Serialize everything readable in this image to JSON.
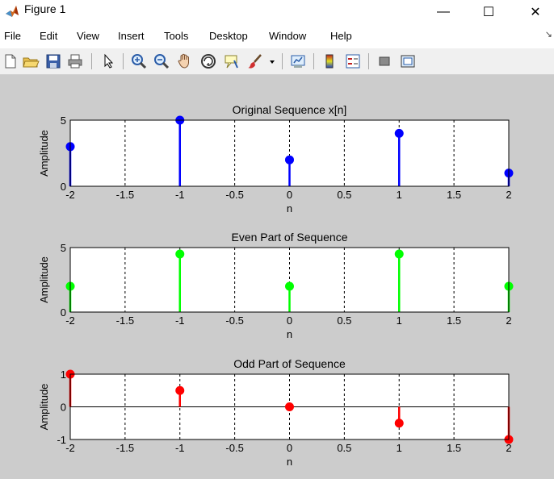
{
  "window": {
    "title": "Figure 1",
    "controls": {
      "minimize": "—",
      "maximize": "☐",
      "close": "✕"
    }
  },
  "menu": {
    "items": [
      "File",
      "Edit",
      "View",
      "Insert",
      "Tools",
      "Desktop",
      "Window",
      "Help"
    ],
    "dock_glyph": "↘"
  },
  "toolbar": {
    "buttons": [
      "new-figure-icon",
      "open-file-icon",
      "save-icon",
      "print-icon",
      "edit-plot-arrow-icon",
      "zoom-in-icon",
      "zoom-out-icon",
      "pan-hand-icon",
      "rotate-3d-icon",
      "data-cursor-icon",
      "brush-icon",
      "brush-dropdown-icon",
      "link-plot-icon",
      "colorbar-icon",
      "legend-icon",
      "hide-plot-tools-icon",
      "show-plot-tools-icon"
    ]
  },
  "colors": {
    "original": "#0000ff",
    "even": "#00ff00",
    "odd": "#ff0000",
    "figure_bg": "#cccccc"
  },
  "chart_data": [
    {
      "type": "stem",
      "title": "Original Sequence x[n]",
      "xlabel": "n",
      "ylabel": "Amplitude",
      "x": [
        -2,
        -1,
        0,
        1,
        2
      ],
      "values": [
        3,
        5,
        2,
        4,
        1
      ],
      "xlim": [
        -2,
        2
      ],
      "ylim": [
        0,
        5
      ],
      "xticks": [
        "-2",
        "-1.5",
        "-1",
        "-0.5",
        "0",
        "0.5",
        "1",
        "1.5",
        "2"
      ],
      "yticks": [
        "0",
        "5"
      ],
      "grid": "x-dashed"
    },
    {
      "type": "stem",
      "title": "Even Part of Sequence",
      "xlabel": "n",
      "ylabel": "Amplitude",
      "x": [
        -2,
        -1,
        0,
        1,
        2
      ],
      "values": [
        2,
        4.5,
        2,
        4.5,
        2
      ],
      "xlim": [
        -2,
        2
      ],
      "ylim": [
        0,
        5
      ],
      "xticks": [
        "-2",
        "-1.5",
        "-1",
        "-0.5",
        "0",
        "0.5",
        "1",
        "1.5",
        "2"
      ],
      "yticks": [
        "0",
        "5"
      ],
      "grid": "x-dashed"
    },
    {
      "type": "stem",
      "title": "Odd Part of Sequence",
      "xlabel": "n",
      "ylabel": "Amplitude",
      "x": [
        -2,
        -1,
        0,
        1,
        2
      ],
      "values": [
        1,
        0.5,
        0,
        -0.5,
        -1
      ],
      "xlim": [
        -2,
        2
      ],
      "ylim": [
        -1,
        1
      ],
      "xticks": [
        "-2",
        "-1.5",
        "-1",
        "-0.5",
        "0",
        "0.5",
        "1",
        "1.5",
        "2"
      ],
      "yticks": [
        "-1",
        "0",
        "1"
      ],
      "grid": "x-dashed"
    }
  ]
}
